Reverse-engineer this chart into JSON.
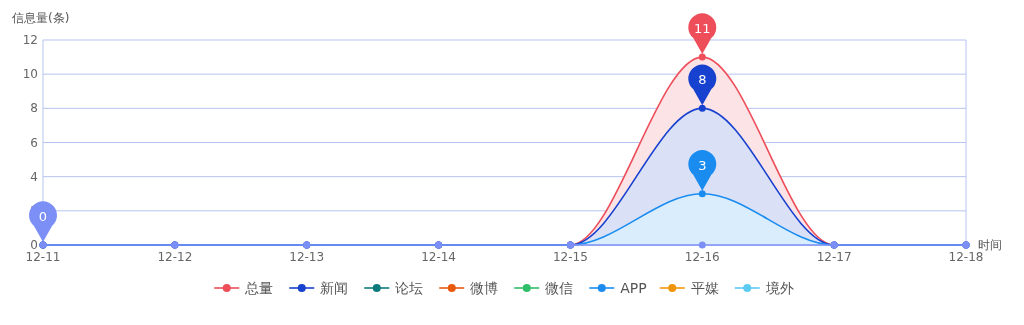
{
  "chart_data": {
    "type": "area",
    "ylabel": "信息量(条)",
    "xlabel": "时间",
    "categories": [
      "12-11",
      "12-12",
      "12-13",
      "12-14",
      "12-15",
      "12-16",
      "12-17",
      "12-18"
    ],
    "ylim": [
      0,
      12
    ],
    "yticks": [
      0,
      2,
      4,
      6,
      8,
      10,
      12
    ],
    "grid": "y",
    "legend": "bottom",
    "marker": "circle",
    "series": [
      {
        "name": "总量",
        "color": "#ee4d5a",
        "values": [
          0,
          0,
          0,
          0,
          0,
          11,
          0,
          0
        ]
      },
      {
        "name": "新闻",
        "color": "#1741cf",
        "values": [
          0,
          0,
          0,
          0,
          0,
          8,
          0,
          0
        ]
      },
      {
        "name": "论坛",
        "type": "line",
        "color": "#0c7a7a",
        "values": [
          null,
          null,
          null,
          null,
          null,
          null,
          null,
          null
        ]
      },
      {
        "name": "微博",
        "type": "line",
        "color": "#e8590c",
        "values": [
          null,
          null,
          null,
          null,
          null,
          null,
          null,
          null
        ]
      },
      {
        "name": "微信",
        "type": "line",
        "color": "#2fbe6a",
        "values": [
          null,
          null,
          null,
          null,
          null,
          null,
          null,
          null
        ]
      },
      {
        "name": "APP",
        "color": "#1a8cf0",
        "values": [
          0,
          0,
          0,
          0,
          0,
          3,
          0,
          0
        ]
      },
      {
        "name": "平媒",
        "type": "line",
        "color": "#f0960e",
        "values": [
          null,
          null,
          null,
          null,
          null,
          null,
          null,
          null
        ]
      },
      {
        "name": "境外",
        "type": "line",
        "color": "#5ccbf0",
        "values": [
          null,
          null,
          null,
          null,
          null,
          null,
          null,
          null
        ]
      },
      {
        "type": "line",
        "color": "#7b8ff7",
        "values": [
          0,
          0,
          0,
          0,
          0,
          0,
          0,
          0
        ]
      }
    ],
    "annotations": [
      {
        "text": "0",
        "x": "12-11",
        "y": 0
      },
      {
        "text": "11",
        "x": "12-16",
        "y": 11
      },
      {
        "text": "8",
        "x": "12-16",
        "y": 8
      },
      {
        "text": "3",
        "x": "12-16",
        "y": 3
      }
    ]
  }
}
